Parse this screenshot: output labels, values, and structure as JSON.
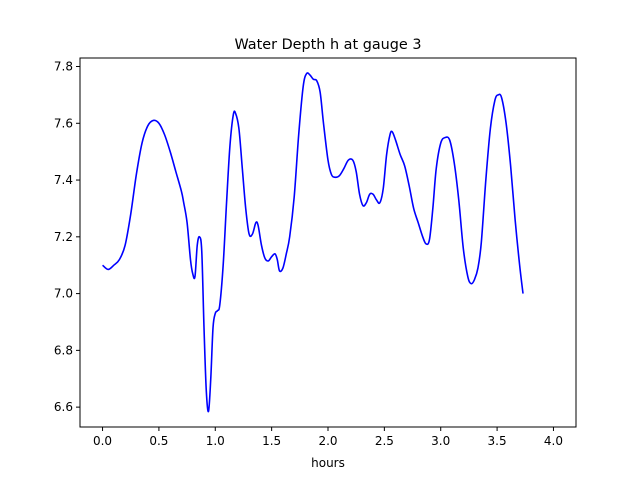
{
  "chart_data": {
    "type": "line",
    "title": "Water Depth h at gauge 3",
    "xlabel": "hours",
    "ylabel": "",
    "xlim": [
      -0.2,
      4.2
    ],
    "ylim": [
      6.53,
      7.83
    ],
    "xticks": [
      0.0,
      0.5,
      1.0,
      1.5,
      2.0,
      2.5,
      3.0,
      3.5,
      4.0
    ],
    "xtick_labels": [
      "0.0",
      "0.5",
      "1.0",
      "1.5",
      "2.0",
      "2.5",
      "3.0",
      "3.5",
      "4.0"
    ],
    "yticks": [
      6.6,
      6.8,
      7.0,
      7.2,
      7.4,
      7.6,
      7.8
    ],
    "ytick_labels": [
      "6.6",
      "6.8",
      "7.0",
      "7.2",
      "7.4",
      "7.6",
      "7.8"
    ],
    "grid": false,
    "legend": "none",
    "series": [
      {
        "name": "",
        "color": "#0000ff",
        "points": [
          [
            0.0,
            7.1
          ],
          [
            0.05,
            7.085
          ],
          [
            0.1,
            7.1
          ],
          [
            0.15,
            7.12
          ],
          [
            0.2,
            7.17
          ],
          [
            0.25,
            7.28
          ],
          [
            0.3,
            7.42
          ],
          [
            0.35,
            7.53
          ],
          [
            0.4,
            7.59
          ],
          [
            0.45,
            7.61
          ],
          [
            0.5,
            7.6
          ],
          [
            0.55,
            7.56
          ],
          [
            0.6,
            7.5
          ],
          [
            0.65,
            7.43
          ],
          [
            0.7,
            7.36
          ],
          [
            0.72,
            7.32
          ],
          [
            0.75,
            7.25
          ],
          [
            0.78,
            7.12
          ],
          [
            0.8,
            7.07
          ],
          [
            0.82,
            7.06
          ],
          [
            0.84,
            7.17
          ],
          [
            0.86,
            7.2
          ],
          [
            0.88,
            7.15
          ],
          [
            0.9,
            6.88
          ],
          [
            0.92,
            6.66
          ],
          [
            0.94,
            6.585
          ],
          [
            0.96,
            6.7
          ],
          [
            0.98,
            6.88
          ],
          [
            1.0,
            6.93
          ],
          [
            1.02,
            6.94
          ],
          [
            1.04,
            6.96
          ],
          [
            1.07,
            7.1
          ],
          [
            1.1,
            7.32
          ],
          [
            1.13,
            7.52
          ],
          [
            1.16,
            7.63
          ],
          [
            1.18,
            7.635
          ],
          [
            1.21,
            7.58
          ],
          [
            1.24,
            7.44
          ],
          [
            1.27,
            7.3
          ],
          [
            1.3,
            7.21
          ],
          [
            1.33,
            7.21
          ],
          [
            1.36,
            7.25
          ],
          [
            1.38,
            7.24
          ],
          [
            1.41,
            7.17
          ],
          [
            1.44,
            7.125
          ],
          [
            1.47,
            7.115
          ],
          [
            1.5,
            7.13
          ],
          [
            1.53,
            7.14
          ],
          [
            1.55,
            7.12
          ],
          [
            1.57,
            7.08
          ],
          [
            1.6,
            7.09
          ],
          [
            1.63,
            7.14
          ],
          [
            1.66,
            7.2
          ],
          [
            1.7,
            7.34
          ],
          [
            1.74,
            7.56
          ],
          [
            1.78,
            7.73
          ],
          [
            1.81,
            7.775
          ],
          [
            1.84,
            7.77
          ],
          [
            1.87,
            7.755
          ],
          [
            1.9,
            7.75
          ],
          [
            1.93,
            7.71
          ],
          [
            1.96,
            7.6
          ],
          [
            2.0,
            7.47
          ],
          [
            2.03,
            7.42
          ],
          [
            2.06,
            7.41
          ],
          [
            2.1,
            7.415
          ],
          [
            2.14,
            7.44
          ],
          [
            2.18,
            7.47
          ],
          [
            2.22,
            7.47
          ],
          [
            2.25,
            7.43
          ],
          [
            2.28,
            7.35
          ],
          [
            2.31,
            7.31
          ],
          [
            2.34,
            7.32
          ],
          [
            2.37,
            7.35
          ],
          [
            2.4,
            7.35
          ],
          [
            2.43,
            7.33
          ],
          [
            2.46,
            7.32
          ],
          [
            2.49,
            7.37
          ],
          [
            2.52,
            7.49
          ],
          [
            2.55,
            7.56
          ],
          [
            2.57,
            7.57
          ],
          [
            2.6,
            7.54
          ],
          [
            2.64,
            7.49
          ],
          [
            2.68,
            7.45
          ],
          [
            2.72,
            7.38
          ],
          [
            2.76,
            7.3
          ],
          [
            2.8,
            7.25
          ],
          [
            2.84,
            7.2
          ],
          [
            2.87,
            7.175
          ],
          [
            2.9,
            7.19
          ],
          [
            2.93,
            7.3
          ],
          [
            2.96,
            7.44
          ],
          [
            3.0,
            7.53
          ],
          [
            3.04,
            7.55
          ],
          [
            3.08,
            7.54
          ],
          [
            3.12,
            7.46
          ],
          [
            3.16,
            7.33
          ],
          [
            3.2,
            7.16
          ],
          [
            3.24,
            7.06
          ],
          [
            3.27,
            7.035
          ],
          [
            3.3,
            7.05
          ],
          [
            3.33,
            7.09
          ],
          [
            3.36,
            7.18
          ],
          [
            3.4,
            7.4
          ],
          [
            3.44,
            7.58
          ],
          [
            3.48,
            7.68
          ],
          [
            3.51,
            7.7
          ],
          [
            3.54,
            7.69
          ],
          [
            3.58,
            7.6
          ],
          [
            3.62,
            7.45
          ],
          [
            3.66,
            7.26
          ],
          [
            3.7,
            7.1
          ],
          [
            3.73,
            7.0
          ]
        ]
      }
    ]
  }
}
